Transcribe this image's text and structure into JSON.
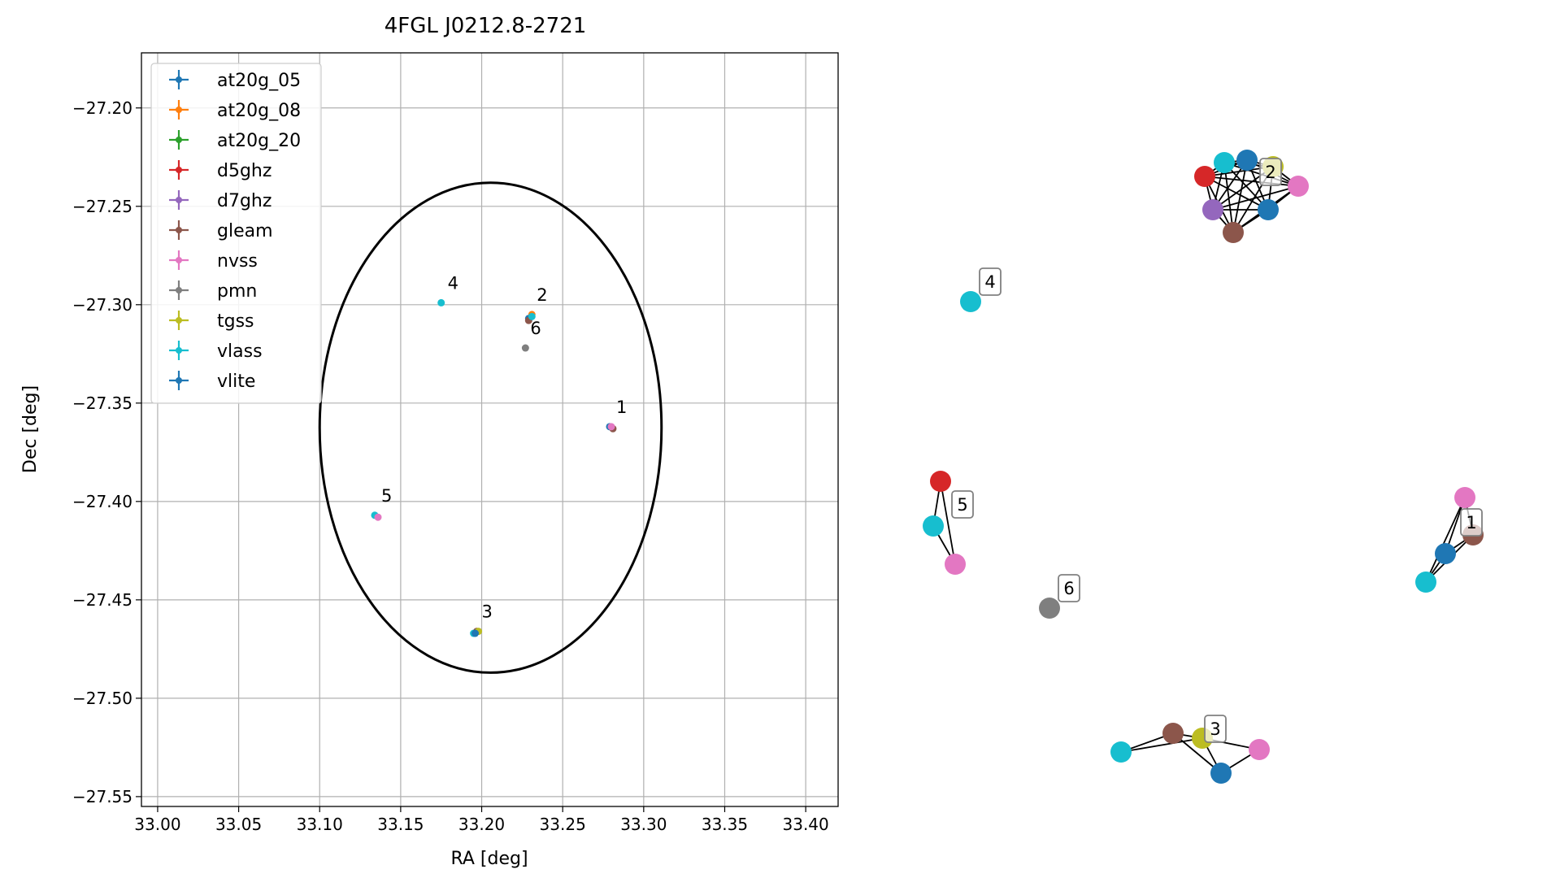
{
  "chart_data": [
    {
      "type": "scatter",
      "title": "4FGL J0212.8-2721",
      "xlabel": "RA [deg]",
      "ylabel": "Dec [deg]",
      "xlim": [
        32.99,
        33.42
      ],
      "ylim": [
        -27.555,
        -27.172
      ],
      "xticks": [
        "33.00",
        "33.05",
        "33.10",
        "33.15",
        "33.20",
        "33.25",
        "33.30",
        "33.35",
        "33.40"
      ],
      "yticks": [
        "−27.20",
        "−27.25",
        "−27.30",
        "−27.35",
        "−27.40",
        "−27.45",
        "−27.50",
        "−27.55"
      ],
      "grid": true,
      "legend_position": "upper-left",
      "legend": [
        {
          "name": "at20g_05",
          "color": "#1f77b4"
        },
        {
          "name": "at20g_08",
          "color": "#ff7f0e"
        },
        {
          "name": "at20g_20",
          "color": "#2ca02c"
        },
        {
          "name": "d5ghz",
          "color": "#d62728"
        },
        {
          "name": "d7ghz",
          "color": "#9467bd"
        },
        {
          "name": "gleam",
          "color": "#8c564b"
        },
        {
          "name": "nvss",
          "color": "#e377c2"
        },
        {
          "name": "pmn",
          "color": "#7f7f7f"
        },
        {
          "name": "tgss",
          "color": "#bcbd22"
        },
        {
          "name": "vlass",
          "color": "#17becf"
        },
        {
          "name": "vlite",
          "color": "#1f77b4"
        }
      ],
      "ellipse": {
        "center": [
          33.2055,
          -27.3625
        ],
        "ra_semi_axis": 0.1055,
        "dec_semi_axis": 0.1245,
        "color": "#000000"
      },
      "points": [
        {
          "ra": 33.229,
          "dec": -27.307,
          "color": "#1f77b4"
        },
        {
          "ra": 33.231,
          "dec": -27.305,
          "color": "#ff7f0e"
        },
        {
          "ra": 33.229,
          "dec": -27.308,
          "color": "#8c564b"
        },
        {
          "ra": 33.231,
          "dec": -27.306,
          "color": "#17becf"
        },
        {
          "ra": 33.227,
          "dec": -27.322,
          "color": "#7f7f7f"
        },
        {
          "ra": 33.175,
          "dec": -27.299,
          "color": "#17becf"
        },
        {
          "ra": 33.279,
          "dec": -27.362,
          "color": "#1f77b4"
        },
        {
          "ra": 33.281,
          "dec": -27.363,
          "color": "#8c564b"
        },
        {
          "ra": 33.28,
          "dec": -27.362,
          "color": "#e377c2"
        },
        {
          "ra": 33.134,
          "dec": -27.407,
          "color": "#17becf"
        },
        {
          "ra": 33.136,
          "dec": -27.408,
          "color": "#e377c2"
        },
        {
          "ra": 33.195,
          "dec": -27.467,
          "color": "#17becf"
        },
        {
          "ra": 33.197,
          "dec": -27.466,
          "color": "#8c564b"
        },
        {
          "ra": 33.198,
          "dec": -27.466,
          "color": "#bcbd22"
        },
        {
          "ra": 33.196,
          "dec": -27.467,
          "color": "#1f77b4"
        }
      ],
      "labels": [
        {
          "text": "1",
          "ra": 33.283,
          "dec": -27.355
        },
        {
          "text": "2",
          "ra": 33.234,
          "dec": -27.298
        },
        {
          "text": "3",
          "ra": 33.2,
          "dec": -27.459
        },
        {
          "text": "4",
          "ra": 33.179,
          "dec": -27.292
        },
        {
          "text": "5",
          "ra": 33.138,
          "dec": -27.4
        },
        {
          "text": "6",
          "ra": 33.23,
          "dec": -27.315
        }
      ]
    },
    {
      "type": "network",
      "groups": [
        {
          "label": "1",
          "nodes": [
            {
              "color": "#e377c2"
            },
            {
              "color": "#8c564b"
            },
            {
              "color": "#1f77b4"
            },
            {
              "color": "#17becf"
            }
          ],
          "edges": [
            [
              0,
              1
            ],
            [
              0,
              2
            ],
            [
              0,
              3
            ],
            [
              1,
              2
            ],
            [
              1,
              3
            ],
            [
              2,
              3
            ]
          ]
        },
        {
          "label": "2",
          "nodes": [
            {
              "color": "#17becf"
            },
            {
              "color": "#1f77b4"
            },
            {
              "color": "#bcbd22"
            },
            {
              "color": "#d62728"
            },
            {
              "color": "#e377c2"
            },
            {
              "color": "#9467bd"
            },
            {
              "color": "#1f77b4"
            },
            {
              "color": "#8c564b"
            }
          ],
          "edges": "all"
        },
        {
          "label": "3",
          "nodes": [
            {
              "color": "#17becf"
            },
            {
              "color": "#8c564b"
            },
            {
              "color": "#bcbd22"
            },
            {
              "color": "#e377c2"
            },
            {
              "color": "#1f77b4"
            }
          ],
          "edges": [
            [
              0,
              1
            ],
            [
              0,
              2
            ],
            [
              1,
              2
            ],
            [
              1,
              4
            ],
            [
              2,
              4
            ],
            [
              2,
              3
            ],
            [
              3,
              4
            ]
          ]
        },
        {
          "label": "4",
          "nodes": [
            {
              "color": "#17becf"
            }
          ],
          "edges": []
        },
        {
          "label": "5",
          "nodes": [
            {
              "color": "#d62728"
            },
            {
              "color": "#17becf"
            },
            {
              "color": "#e377c2"
            }
          ],
          "edges": [
            [
              0,
              1
            ],
            [
              0,
              2
            ],
            [
              1,
              2
            ]
          ]
        },
        {
          "label": "6",
          "nodes": [
            {
              "color": "#7f7f7f"
            }
          ],
          "edges": []
        }
      ]
    }
  ]
}
